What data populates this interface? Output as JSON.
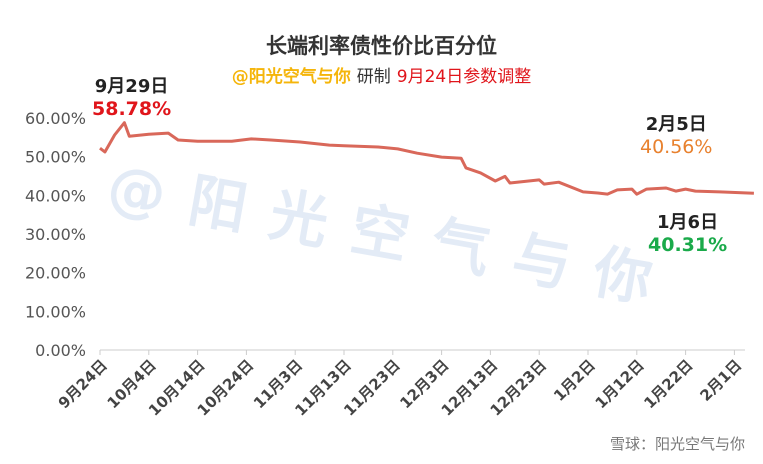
{
  "chart_data": {
    "type": "line",
    "title": "长端利率债性价比百分位",
    "subtitle": {
      "author": "@阳光空气与你",
      "made": "研制",
      "note": "9月24日参数调整"
    },
    "ylim": [
      0,
      60
    ],
    "yticks": [
      "0.00%",
      "10.00%",
      "20.00%",
      "30.00%",
      "40.00%",
      "50.00%",
      "60.00%"
    ],
    "xticks": [
      "9月24日",
      "10月4日",
      "10月14日",
      "10月24日",
      "11月3日",
      "11月13日",
      "11月23日",
      "12月3日",
      "12月13日",
      "12月23日",
      "1月2日",
      "1月12日",
      "1月22日",
      "2月1日"
    ],
    "grid": false,
    "line_color": "#d9685a",
    "series": [
      {
        "x": [
          "2024-09-24",
          "2024-09-25",
          "2024-09-27",
          "2024-09-29",
          "2024-09-30",
          "2024-10-04",
          "2024-10-08",
          "2024-10-10",
          "2024-10-14",
          "2024-10-21",
          "2024-10-25",
          "2024-10-29",
          "2024-11-04",
          "2024-11-10",
          "2024-11-13",
          "2024-11-20",
          "2024-11-24",
          "2024-11-28",
          "2024-12-03",
          "2024-12-07",
          "2024-12-08",
          "2024-12-11",
          "2024-12-14",
          "2024-12-16",
          "2024-12-17",
          "2024-12-23",
          "2024-12-24",
          "2024-12-27",
          "2025-01-01",
          "2025-01-04",
          "2025-01-06",
          "2025-01-08",
          "2025-01-11",
          "2025-01-12",
          "2025-01-14",
          "2025-01-18",
          "2025-01-20",
          "2025-01-22",
          "2025-01-24",
          "2025-01-29",
          "2025-02-05"
        ],
        "values": [
          52.2,
          51.2,
          55.6,
          58.78,
          55.3,
          55.8,
          56.1,
          54.3,
          54.0,
          54.0,
          54.6,
          54.3,
          53.8,
          53.0,
          52.8,
          52.5,
          52.0,
          50.9,
          49.9,
          49.6,
          47.1,
          45.8,
          43.7,
          44.9,
          43.2,
          44.0,
          42.9,
          43.4,
          40.9,
          40.6,
          40.31,
          41.4,
          41.6,
          40.3,
          41.6,
          41.9,
          41.1,
          41.6,
          41.1,
          40.9,
          40.56
        ]
      }
    ],
    "annotations": [
      {
        "date": "9月29日",
        "value": "58.78%",
        "color": "#e0151b"
      },
      {
        "date": "2月5日",
        "value": "40.56%",
        "color": "#e8812e"
      },
      {
        "date": "1月6日",
        "value": "40.31%",
        "color": "#1aaa4a"
      }
    ],
    "watermark": "@ 阳 光 空 气 与 你"
  },
  "footer": "雪球：阳光空气与你"
}
